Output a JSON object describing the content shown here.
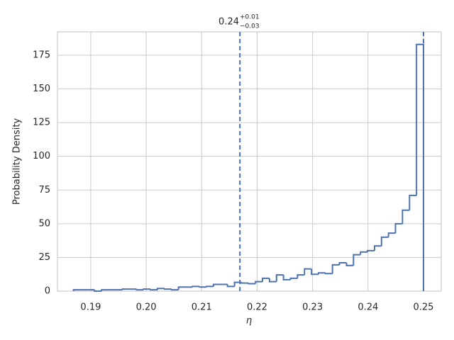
{
  "chart_data": {
    "type": "histogram",
    "title": {
      "main": "0.24",
      "sup": "+0.01",
      "sub": "−0.03"
    },
    "xlabel": "η",
    "ylabel": "Probability Density",
    "bins": [
      0.1869,
      0.18816,
      0.18942,
      0.19069,
      0.19195,
      0.19321,
      0.19447,
      0.19573,
      0.197,
      0.19826,
      0.19952,
      0.20078,
      0.20204,
      0.20331,
      0.20457,
      0.20583,
      0.20709,
      0.20835,
      0.20962,
      0.21088,
      0.21214,
      0.2134,
      0.21466,
      0.21593,
      0.21719,
      0.21845,
      0.21971,
      0.22097,
      0.22224,
      0.2235,
      0.22476,
      0.22602,
      0.22728,
      0.22855,
      0.22981,
      0.23107,
      0.23233,
      0.23359,
      0.23486,
      0.23612,
      0.23738,
      0.23864,
      0.2399,
      0.24117,
      0.24243,
      0.24369,
      0.24495,
      0.24621,
      0.24748,
      0.24874,
      0.25
    ],
    "values": [
      1,
      1,
      1,
      0,
      1,
      1,
      1,
      1.5,
      1.5,
      1,
      1.5,
      1,
      2,
      1.5,
      1,
      3,
      3,
      3.5,
      3,
      3.5,
      5,
      5,
      3.5,
      6.5,
      6,
      5.5,
      7,
      9.5,
      7,
      12,
      8.5,
      9.5,
      12,
      16.5,
      12.5,
      13.5,
      13,
      19.5,
      21,
      19,
      27,
      29,
      30,
      33.5,
      40,
      43,
      50,
      60,
      71,
      183
    ],
    "color": "#4c72b0",
    "markers": [
      0.2169,
      0.25
    ],
    "xlim": [
      0.184,
      0.2532
    ],
    "ylim": [
      0,
      192.3
    ],
    "xticks": [
      0.19,
      {
        "value": 0.2,
        "label": "0.20"
      },
      0.21,
      0.22,
      0.23,
      0.24,
      0.25
    ],
    "yticks": [
      0,
      25,
      50,
      75,
      100,
      125,
      150,
      175
    ],
    "grid": true
  }
}
